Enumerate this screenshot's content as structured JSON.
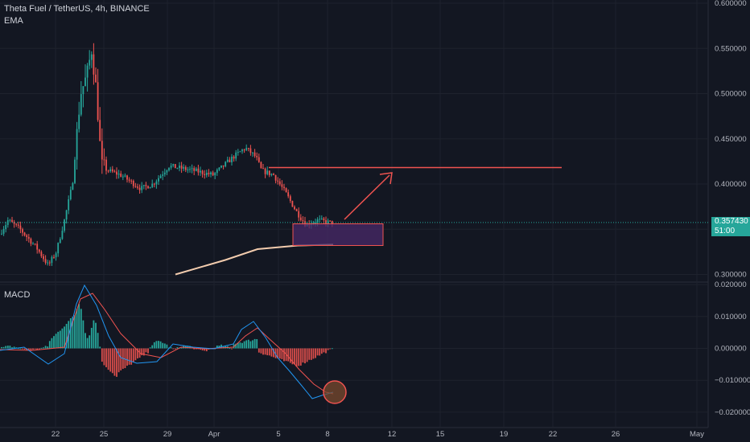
{
  "header": {
    "symbol_line": "Theta Fuel / TetherUS, 4h, BINANCE",
    "indicator": "EMA",
    "macd_label": "MACD"
  },
  "colors": {
    "background": "#131722",
    "grid": "#1e222d",
    "up": "#26a69a",
    "down": "#ef5350",
    "ema": "#f3ccae",
    "macd_line": "#2196f3",
    "signal_line": "#ef5350",
    "zone_fill": "#4a2a6a",
    "zone_border": "#ef5350",
    "price_tag": "#26a69a"
  },
  "price_tag": {
    "price": "0.357430",
    "countdown": "51:00"
  },
  "chart_data": [
    {
      "type": "candlestick",
      "x_axis": {
        "ticks": [
          "22",
          "25",
          "29",
          "Apr",
          "5",
          "8",
          "12",
          "15",
          "19",
          "22",
          "26",
          "May"
        ]
      },
      "y_axis": {
        "ticks": [
          "0.600000",
          "0.550000",
          "0.500000",
          "0.450000",
          "0.400000",
          "0.300000"
        ],
        "ylim": [
          0.295,
          0.6
        ]
      },
      "series": [
        {
          "name": "EMA",
          "points": [
            [
              3.5,
              0.3
            ],
            [
              6.0,
              0.316
            ],
            [
              7.5,
              0.328
            ],
            [
              8.0,
              0.33
            ],
            [
              8.2,
              0.331
            ]
          ]
        }
      ],
      "drawings": {
        "resistance_level": 0.42,
        "support_zone": [
          0.332,
          0.356
        ],
        "projection_target": 0.412
      },
      "last_price": 0.35743
    },
    {
      "type": "histogram",
      "title": "MACD",
      "y_axis": {
        "ticks": [
          "0.020000",
          "0.010000",
          "0.000000",
          "−0.010000",
          "−0.020000"
        ],
        "ylim": [
          -0.0225,
          0.0205
        ]
      }
    }
  ]
}
